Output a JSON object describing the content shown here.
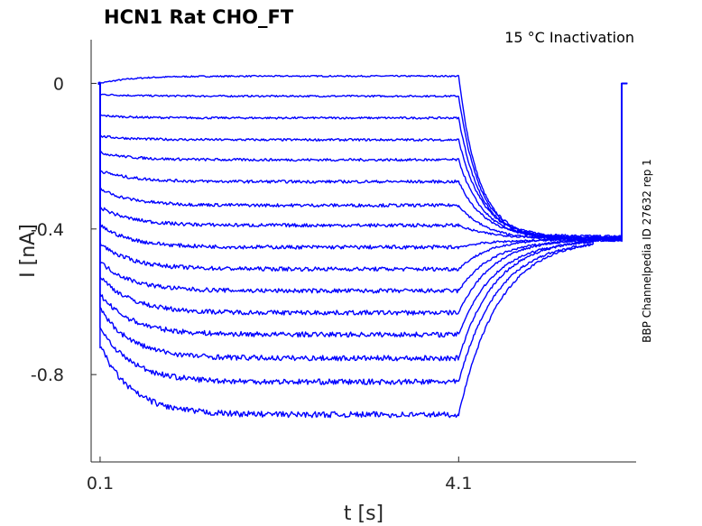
{
  "chart_data": {
    "type": "line",
    "title": "HCN1  Rat  CHO_FT",
    "annotation": "15 °C  Inactivation",
    "side_label": "BBP Channelpedia ID 27632 rep 1",
    "xlabel": "t [s]",
    "ylabel": "I [nA]",
    "xlim": [
      0.0,
      6.08
    ],
    "ylim": [
      -1.04,
      0.12
    ],
    "xticks": [
      0.1,
      4.1
    ],
    "xtick_labels": [
      "0.1",
      "4.1"
    ],
    "yticks": [
      0,
      -0.4,
      -0.8
    ],
    "ytick_labels": [
      "0",
      "-0.4",
      "-0.8"
    ],
    "grid": false,
    "line_color": "#0000ff",
    "step_on": 0.1,
    "step_off": 4.1,
    "tail_mid": 5.6,
    "tail_off": 5.92,
    "series": [
      {
        "steady": 0.02,
        "initial": 0.0,
        "tail": -0.42
      },
      {
        "steady": -0.035,
        "initial": -0.03,
        "tail": -0.425
      },
      {
        "steady": -0.095,
        "initial": -0.088,
        "tail": -0.43
      },
      {
        "steady": -0.155,
        "initial": -0.145,
        "tail": -0.425
      },
      {
        "steady": -0.21,
        "initial": -0.19,
        "tail": -0.43
      },
      {
        "steady": -0.27,
        "initial": -0.24,
        "tail": -0.425
      },
      {
        "steady": -0.335,
        "initial": -0.29,
        "tail": -0.43
      },
      {
        "steady": -0.39,
        "initial": -0.34,
        "tail": -0.425
      },
      {
        "steady": -0.45,
        "initial": -0.39,
        "tail": -0.43
      },
      {
        "steady": -0.51,
        "initial": -0.44,
        "tail": -0.425
      },
      {
        "steady": -0.57,
        "initial": -0.49,
        "tail": -0.43
      },
      {
        "steady": -0.63,
        "initial": -0.53,
        "tail": -0.425
      },
      {
        "steady": -0.69,
        "initial": -0.58,
        "tail": -0.43
      },
      {
        "steady": -0.755,
        "initial": -0.62,
        "tail": -0.425
      },
      {
        "steady": -0.82,
        "initial": -0.67,
        "tail": -0.43
      },
      {
        "steady": -0.91,
        "initial": -0.72,
        "tail": -0.425
      }
    ]
  }
}
